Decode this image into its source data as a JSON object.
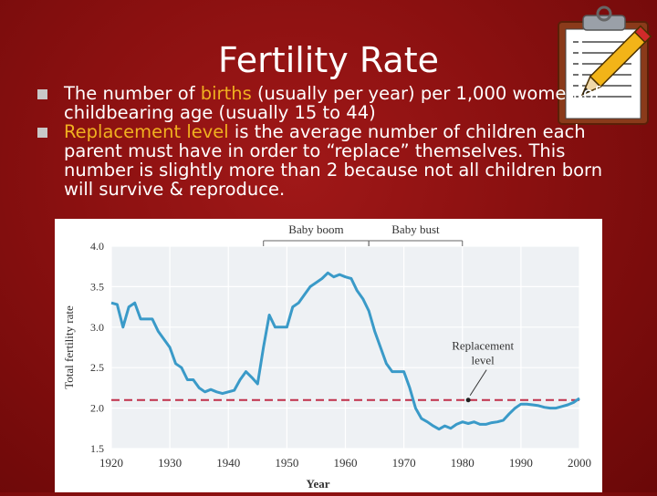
{
  "slide": {
    "title": "Fertility Rate",
    "bullets": [
      {
        "pre": "The number of ",
        "highlight": "births",
        "post": " (usually per year) per 1,000 women of childbearing age (usually 15 to 44)"
      },
      {
        "pre": "",
        "highlight": "Replacement level",
        "post": " is the average number of children each parent must have in order to “replace” themselves. This number is slightly more than 2 because not all children born will survive & reproduce."
      }
    ],
    "colors": {
      "background": "#8a1010",
      "highlight": "#f0b020",
      "line": "#3a9ac8",
      "replacement": "#c0304a"
    },
    "icons": [
      "clipboard-pencil-icon"
    ]
  },
  "chart_data": {
    "type": "line",
    "title": "",
    "xlabel": "Year",
    "ylabel": "Total fertility rate",
    "xlim": [
      1920,
      2000
    ],
    "ylim": [
      1.5,
      4.0
    ],
    "xticks": [
      "1920",
      "1930",
      "1940",
      "1950",
      "1960",
      "1970",
      "1980",
      "1990",
      "2000"
    ],
    "yticks": [
      "1.5",
      "2.0",
      "2.5",
      "3.0",
      "3.5",
      "4.0"
    ],
    "grid": true,
    "series": [
      {
        "x": [
          1920,
          1921,
          1922,
          1923,
          1924,
          1925,
          1926,
          1927,
          1928,
          1929,
          1930,
          1931,
          1932,
          1933,
          1934,
          1935,
          1936,
          1937,
          1938,
          1939,
          1940,
          1941,
          1942,
          1943,
          1944,
          1945,
          1946,
          1947,
          1948,
          1949,
          1950,
          1951,
          1952,
          1953,
          1954,
          1955,
          1956,
          1957,
          1958,
          1959,
          1960,
          1961,
          1962,
          1963,
          1964,
          1965,
          1966,
          1967,
          1968,
          1969,
          1970,
          1971,
          1972,
          1973,
          1974,
          1975,
          1976,
          1977,
          1978,
          1979,
          1980,
          1981,
          1982,
          1983,
          1984,
          1985,
          1986,
          1987,
          1988,
          1989,
          1990,
          1991,
          1992,
          1993,
          1994,
          1995,
          1996,
          1997,
          1998,
          1999,
          2000
        ],
        "y": [
          3.3,
          3.28,
          3.0,
          3.25,
          3.3,
          3.1,
          3.1,
          3.1,
          2.95,
          2.85,
          2.75,
          2.55,
          2.5,
          2.35,
          2.35,
          2.25,
          2.2,
          2.23,
          2.2,
          2.18,
          2.2,
          2.22,
          2.35,
          2.45,
          2.38,
          2.3,
          2.75,
          3.15,
          3.0,
          3.0,
          3.0,
          3.25,
          3.3,
          3.4,
          3.5,
          3.55,
          3.6,
          3.67,
          3.62,
          3.65,
          3.62,
          3.6,
          3.45,
          3.35,
          3.2,
          2.95,
          2.75,
          2.55,
          2.45,
          2.45,
          2.45,
          2.25,
          2.0,
          1.87,
          1.83,
          1.78,
          1.74,
          1.78,
          1.75,
          1.8,
          1.83,
          1.81,
          1.83,
          1.8,
          1.8,
          1.82,
          1.83,
          1.85,
          1.93,
          2.0,
          2.05,
          2.05,
          2.04,
          2.03,
          2.01,
          2.0,
          2.0,
          2.02,
          2.04,
          2.07,
          2.12
        ]
      }
    ],
    "reference_line": {
      "y": 2.1,
      "label": "Replacement level"
    },
    "annotations": [
      {
        "text": "Baby boom",
        "x_start": 1946,
        "x_end": 1964
      },
      {
        "text": "Baby bust",
        "x_start": 1964,
        "x_end": 1980
      },
      {
        "text": "Replacement level",
        "x": 1981,
        "y": 2.1
      }
    ]
  }
}
